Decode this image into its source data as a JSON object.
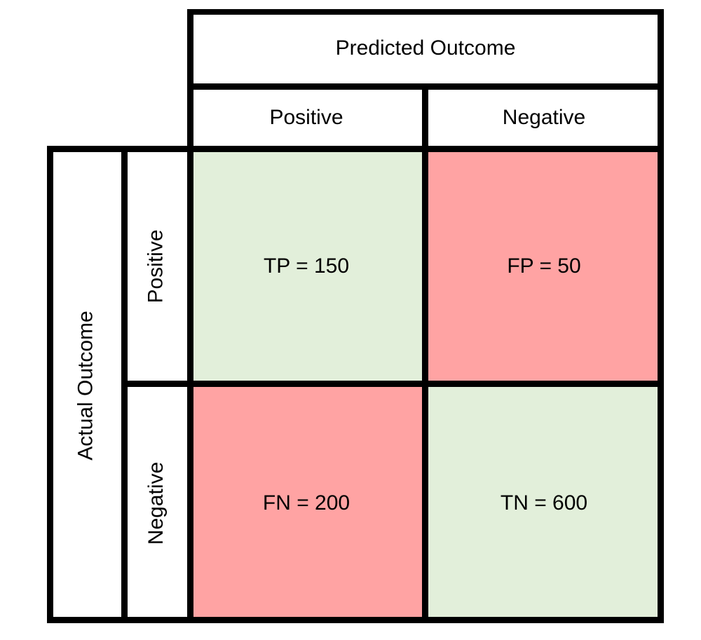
{
  "header": {
    "predicted_title": "Predicted Outcome",
    "actual_title": "Actual Outcome"
  },
  "predicted_labels": [
    "Positive",
    "Negative"
  ],
  "actual_labels": [
    "Positive",
    "Negative"
  ],
  "cells": [
    {
      "label": "TP = 150",
      "kind": "correct"
    },
    {
      "label": "FP = 50",
      "kind": "incorrect"
    },
    {
      "label": "FN = 200",
      "kind": "incorrect"
    },
    {
      "label": "TN = 600",
      "kind": "correct"
    }
  ],
  "colors": {
    "correct": "#e2efda",
    "incorrect": "#ffa3a3",
    "border": "#000000",
    "header_bg": "#ffffff"
  }
}
